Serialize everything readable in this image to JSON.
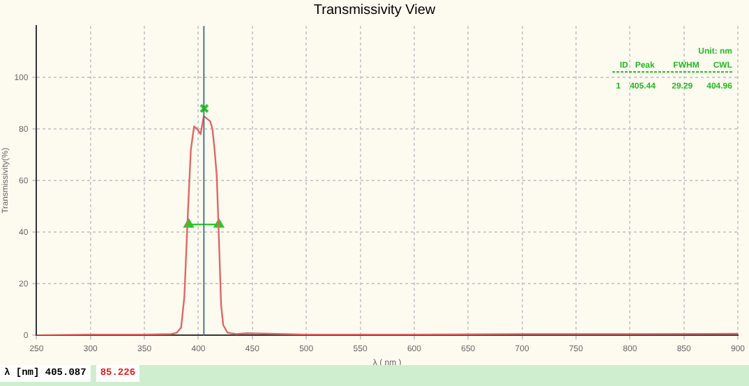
{
  "chart_data": {
    "type": "line",
    "title": "Transmissivity View",
    "xlabel": "λ ( nm )",
    "ylabel": "Transmissivity(%)",
    "x": [
      250,
      300,
      350,
      375,
      380,
      384,
      387,
      390,
      393,
      396,
      399,
      402,
      405,
      408,
      411,
      413,
      415,
      417,
      419,
      421,
      423,
      427,
      435,
      445,
      500,
      600,
      700,
      800,
      900
    ],
    "series": [
      {
        "color": "#e06666",
        "values": [
          0,
          0.3,
          0.3,
          0.5,
          1,
          3,
          15,
          45,
          72,
          81,
          80,
          78,
          85,
          84,
          83,
          80,
          72,
          62,
          38,
          12,
          4,
          1,
          0.5,
          0.8,
          0.3,
          0.3,
          0.5,
          0.5,
          0.6
        ]
      },
      {
        "type": "line",
        "color": "#22cc22",
        "x": [
          391,
          419
        ],
        "values": [
          43,
          43
        ],
        "marker": "triangle"
      },
      {
        "type": "scatter",
        "color": "#22cc22",
        "x": [
          405.44
        ],
        "values": [
          88
        ],
        "marker": "cross"
      }
    ],
    "xlim": [
      250,
      900
    ],
    "xticks": [
      250,
      300,
      350,
      400,
      450,
      500,
      550,
      600,
      650,
      700,
      750,
      800,
      850,
      900
    ],
    "ylim": [
      0,
      120
    ],
    "yticks": [
      0,
      20,
      40,
      60,
      80,
      100
    ],
    "grid": true,
    "legend": false,
    "marker": "none",
    "ref_lines": [
      {
        "axis": "x",
        "value": 405.087,
        "color": "#4a7a8a"
      }
    ],
    "annotations": [
      "Unit: nm",
      "ID   Peak        FWHM      CWL",
      "1    405.44       29.29      404.96",
      "λ [nm] 405.087",
      "85.226"
    ]
  }
}
